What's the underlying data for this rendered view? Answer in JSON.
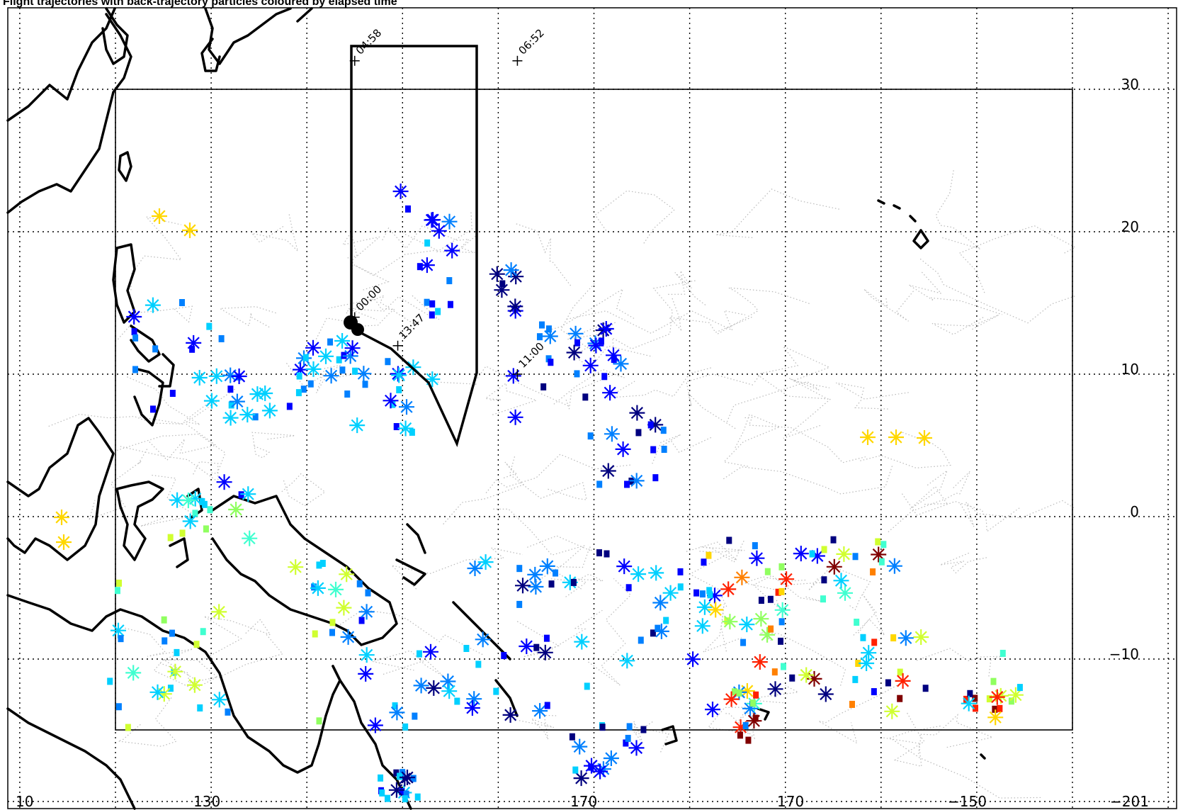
{
  "header": {
    "text": "Flight trajectories with back-trajectory particles coloured by elapsed time"
  },
  "map": {
    "x_axis_labels": [
      "10",
      "130",
      "170",
      "170",
      "−150",
      "−201"
    ],
    "y_axis_labels": [
      "30",
      "20",
      "10",
      "0",
      "−10"
    ],
    "longitude_grid": [
      110,
      120,
      130,
      140,
      150,
      160,
      170,
      180,
      -170,
      -160,
      -150,
      -140,
      -130
    ],
    "latitude_grid": [
      30,
      20,
      10,
      0,
      -10,
      -20
    ],
    "colors": {
      "coastline": "#000000",
      "trajectory": "#b9b9b9",
      "flight_track": "#000000",
      "palette": [
        "#00007f",
        "#0000ff",
        "#0080ff",
        "#00d0ff",
        "#40ffd0",
        "#90ff60",
        "#d0ff30",
        "#ffd700",
        "#ff8000",
        "#ff2000",
        "#800000"
      ]
    }
  },
  "flight": {
    "time_labels": [
      {
        "text": "04:58",
        "lon": 145.0,
        "lat": 32.0
      },
      {
        "text": "06:52",
        "lon": 162.0,
        "lat": 32.0
      },
      {
        "text": "00:00",
        "lon": 145.0,
        "lat": 14.0
      },
      {
        "text": "13:47",
        "lon": 149.5,
        "lat": 12.0
      },
      {
        "text": "11:00",
        "lon": 162.0,
        "lat": 10.0
      }
    ]
  }
}
